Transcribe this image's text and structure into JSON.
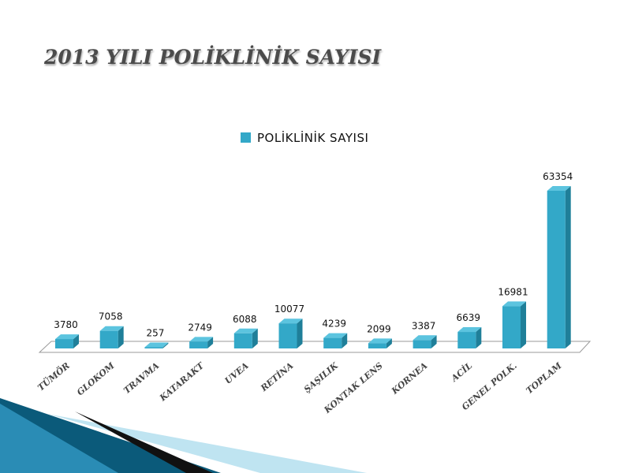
{
  "slide": {
    "title": "2013 YILI POLİKLİNİK SAYISI"
  },
  "colors": {
    "bar_front": "#33a8c8",
    "bar_side": "#1f7f99",
    "bar_top": "#5cc4df",
    "title": "#4b4b4b",
    "accent_dark": "#0b5a7a",
    "accent_light": "#bfe4f1"
  },
  "chart_data": {
    "type": "bar",
    "title": "",
    "xlabel": "",
    "ylabel": "",
    "legend": {
      "position": "top",
      "entries": [
        "POLİKLİNİK SAYISI"
      ]
    },
    "grid": false,
    "ylim": [
      0,
      63354
    ],
    "categories": [
      "TÜMÖR",
      "GLOKOM",
      "TRAVMA",
      "KATARAKT",
      "UVEA",
      "RETİNA",
      "ŞAŞILIK",
      "KONTAK LENS",
      "KORNEA",
      "ACİL",
      "GENEL POLK.",
      "TOPLAM"
    ],
    "series": [
      {
        "name": "POLİKLİNİK SAYISI",
        "values": [
          3780,
          7058,
          257,
          2749,
          6088,
          10077,
          4239,
          2099,
          3387,
          6639,
          16981,
          63354
        ]
      }
    ]
  }
}
